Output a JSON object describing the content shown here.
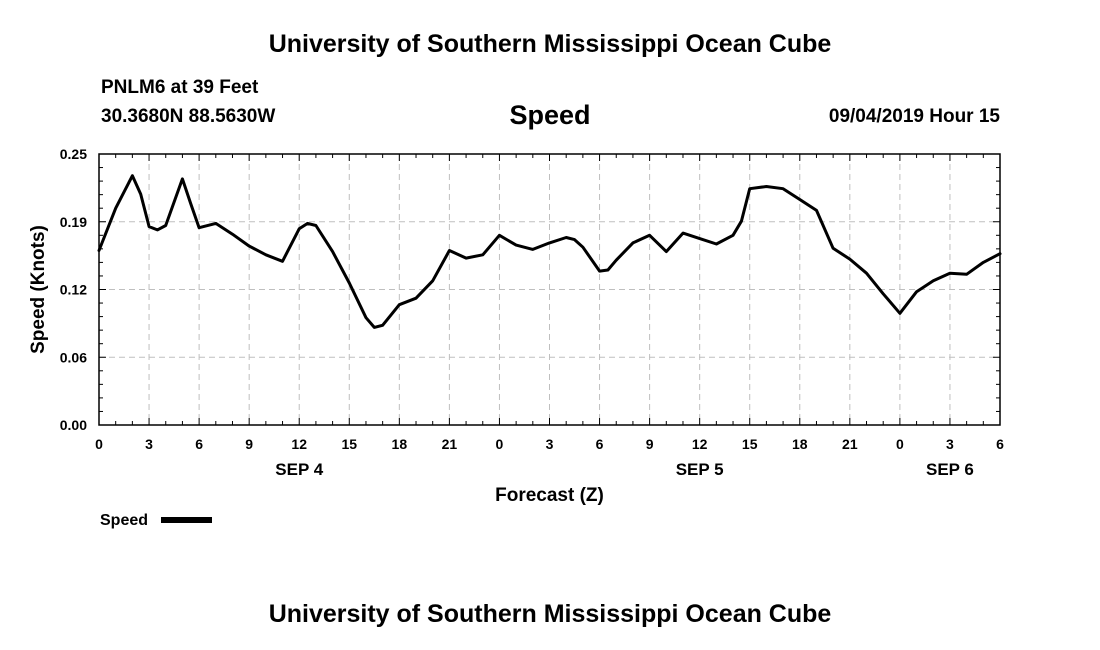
{
  "header": {
    "title": "University of Southern Mississippi Ocean Cube",
    "station": "PNLM6 at 39 Feet",
    "coordinates": "30.3680N 88.5630W",
    "variable": "Speed",
    "datetime": "09/04/2019 Hour 15"
  },
  "footer": {
    "title": "University of Southern Mississippi Ocean Cube"
  },
  "chart_data": {
    "type": "line",
    "ylabel": "Speed (Knots)",
    "xlabel": "Forecast (Z)",
    "ylim": [
      0.0,
      0.25
    ],
    "yticks": [
      "0.00",
      "0.06",
      "0.12",
      "0.19",
      "0.25"
    ],
    "ytick_values": [
      0.0,
      0.0625,
      0.125,
      0.1875,
      0.25
    ],
    "xlim": [
      0,
      54
    ],
    "xticks": [
      "0",
      "3",
      "6",
      "9",
      "12",
      "15",
      "18",
      "21",
      "0",
      "3",
      "6",
      "9",
      "12",
      "15",
      "18",
      "21",
      "0",
      "3",
      "6"
    ],
    "xtick_hours": [
      0,
      3,
      6,
      9,
      12,
      15,
      18,
      21,
      24,
      27,
      30,
      33,
      36,
      39,
      42,
      45,
      48,
      51,
      54
    ],
    "date_labels": [
      {
        "label": "SEP 4",
        "hour": 12
      },
      {
        "label": "SEP 5",
        "hour": 36
      },
      {
        "label": "SEP 6",
        "hour": 51
      }
    ],
    "grid": true,
    "colors": {
      "line": "#000000",
      "grid": "#bfbfbf"
    },
    "series": [
      {
        "name": "Speed",
        "x": [
          0,
          1,
          2,
          2.5,
          3,
          3.5,
          4,
          5,
          5.5,
          6,
          7,
          8,
          9,
          10,
          11,
          12,
          12.5,
          13,
          14,
          15,
          16,
          16.5,
          17,
          18,
          19,
          20,
          21,
          22,
          23,
          24,
          25,
          26,
          27,
          28,
          28.5,
          29,
          30,
          30.5,
          31,
          32,
          33,
          34,
          35,
          36,
          37,
          38,
          38.5,
          39,
          40,
          41,
          42,
          43,
          44,
          45,
          46,
          47,
          48,
          49,
          50,
          51,
          52,
          53,
          54
        ],
        "y": [
          0.161,
          0.2,
          0.23,
          0.213,
          0.183,
          0.18,
          0.184,
          0.227,
          0.204,
          0.182,
          0.186,
          0.176,
          0.165,
          0.157,
          0.151,
          0.181,
          0.186,
          0.184,
          0.16,
          0.131,
          0.099,
          0.09,
          0.092,
          0.111,
          0.117,
          0.133,
          0.161,
          0.154,
          0.157,
          0.175,
          0.166,
          0.162,
          0.168,
          0.173,
          0.171,
          0.164,
          0.142,
          0.143,
          0.152,
          0.168,
          0.175,
          0.16,
          0.177,
          0.172,
          0.167,
          0.175,
          0.188,
          0.218,
          0.22,
          0.218,
          0.208,
          0.198,
          0.163,
          0.153,
          0.14,
          0.121,
          0.103,
          0.123,
          0.133,
          0.14,
          0.139,
          0.15,
          0.158
        ]
      }
    ]
  }
}
